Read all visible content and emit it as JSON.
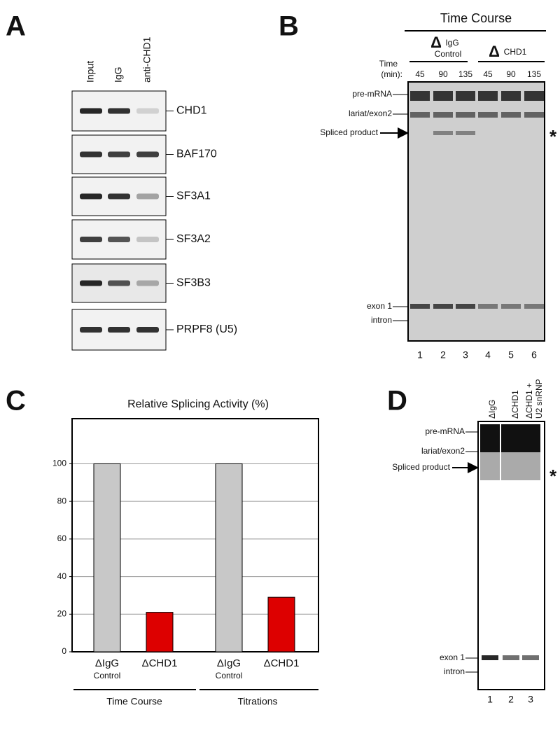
{
  "panel_letters": [
    "A",
    "B",
    "C",
    "D"
  ],
  "panel_a": {
    "columns": [
      "Input",
      "IgG",
      "anti-CHD1"
    ],
    "blots": [
      "CHD1",
      "BAF170",
      "SF3A1",
      "SF3A2",
      "SF3B3",
      "PRPF8 (U5)"
    ]
  },
  "panel_b": {
    "header": "Time Course",
    "groups": [
      {
        "delta": "Δ",
        "label": "IgG",
        "sub": "Control"
      },
      {
        "delta": "Δ",
        "label": "CHD1"
      }
    ],
    "time_label": "Time",
    "time_unit": "(min):",
    "times": [
      "45",
      "90",
      "135",
      "45",
      "90",
      "135"
    ],
    "bands": [
      "pre-mRNA",
      "lariat/exon2",
      "Spliced product",
      "exon 1",
      "intron"
    ],
    "asterisk": "*",
    "lanes": [
      "1",
      "2",
      "3",
      "4",
      "5",
      "6"
    ]
  },
  "chart_data": {
    "type": "bar",
    "title": "Relative Splicing Activity (%)",
    "categories": [
      "ΔIgG",
      "ΔCHD1",
      "ΔIgG",
      "ΔCHD1"
    ],
    "category_sublabels": [
      "Control",
      null,
      "Control",
      null
    ],
    "groups": [
      "Time Course",
      "Titrations"
    ],
    "values": [
      100,
      21,
      100,
      29
    ],
    "colors": [
      "#c8c8c8",
      "#dd0000",
      "#c8c8c8",
      "#dd0000"
    ],
    "ylim": [
      0,
      124
    ],
    "yticks": [
      0,
      20,
      40,
      60,
      80,
      100
    ],
    "grid": true
  },
  "panel_d": {
    "lanes_top": [
      "ΔIgG",
      "ΔCHD1",
      "ΔCHD1 +",
      "U2 snRNP"
    ],
    "bands": [
      "pre-mRNA",
      "lariat/exon2",
      "Spliced product",
      "exon 1",
      "intron"
    ],
    "asterisk": "*",
    "lanes": [
      "1",
      "2",
      "3"
    ]
  }
}
